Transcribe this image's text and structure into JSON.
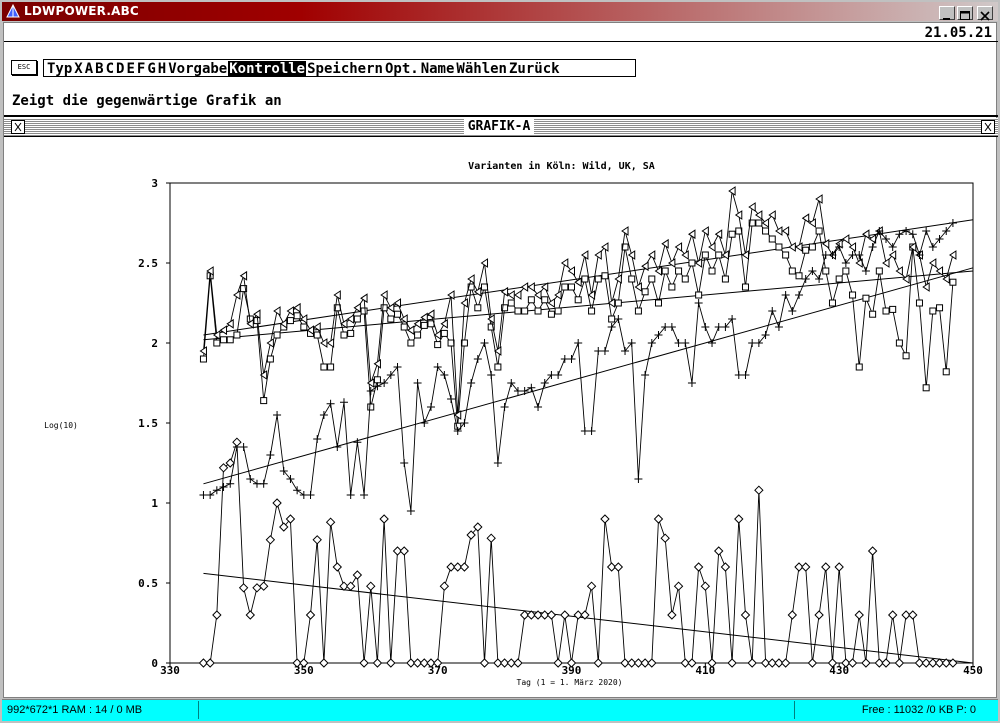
{
  "window": {
    "title": "LDWPOWER.ABC",
    "date": "21.05.21"
  },
  "toolbar": {
    "esc_label": "ESC",
    "menu_items": [
      "Typ",
      "X",
      "A",
      "B",
      "C",
      "D",
      "E",
      "F",
      "G",
      "H",
      "Vorgabe",
      "Kontrolle",
      "Speichern",
      "Opt.",
      "Name",
      "Wählen",
      "Zurück"
    ],
    "selected": "Kontrolle",
    "hint": "Zeigt die gegenwärtige Grafik an"
  },
  "graph_window": {
    "name": "GRAFIK-A"
  },
  "status": {
    "left": "992*672*1   RAM : 14 / 0 MB",
    "right": "Free : 11032 /0 KB  P: 0"
  },
  "chart_data": {
    "type": "line",
    "title": "Varianten in Köln: Wild, UK, SA",
    "xlabel": "Tag (1 = 1. März 2020)",
    "ylabel": "Log(10)",
    "xlim": [
      330,
      450
    ],
    "ylim": [
      0,
      3
    ],
    "xticks": [
      330,
      350,
      370,
      390,
      410,
      430,
      450
    ],
    "yticks": [
      0,
      0.5,
      1,
      1.5,
      2,
      2.5,
      3
    ],
    "ytick_labels": [
      "0",
      "0.5",
      "1",
      "1.5",
      "2",
      "2.5",
      "3"
    ],
    "grid": false,
    "x": [
      335,
      336,
      337,
      338,
      339,
      340,
      341,
      342,
      343,
      344,
      345,
      346,
      347,
      348,
      349,
      350,
      351,
      352,
      353,
      354,
      355,
      356,
      357,
      358,
      359,
      360,
      361,
      362,
      363,
      364,
      365,
      366,
      367,
      368,
      369,
      370,
      371,
      372,
      373,
      374,
      375,
      376,
      377,
      378,
      379,
      380,
      381,
      382,
      383,
      384,
      385,
      386,
      387,
      388,
      389,
      390,
      391,
      392,
      393,
      394,
      395,
      396,
      397,
      398,
      399,
      400,
      401,
      402,
      403,
      404,
      405,
      406,
      407,
      408,
      409,
      410,
      411,
      412,
      413,
      414,
      415,
      416,
      417,
      418,
      419,
      420,
      421,
      422,
      423,
      424,
      425,
      426,
      427,
      428,
      429,
      430,
      431,
      432,
      433,
      434,
      435,
      436,
      437,
      438,
      439,
      440,
      441,
      442,
      443,
      444,
      445,
      446,
      447
    ],
    "series": [
      {
        "marker": "square",
        "values": [
          1.9,
          2.42,
          2.0,
          2.02,
          2.02,
          2.05,
          2.34,
          2.15,
          2.14,
          1.64,
          1.9,
          2.05,
          2.1,
          2.14,
          2.17,
          2.1,
          2.06,
          2.05,
          1.85,
          1.85,
          2.22,
          2.05,
          2.06,
          2.15,
          2.2,
          1.6,
          1.77,
          2.22,
          2.15,
          2.18,
          2.1,
          2.0,
          2.05,
          2.11,
          2.12,
          1.99,
          2.06,
          2.0,
          1.48,
          2.0,
          2.35,
          2.22,
          2.35,
          2.1,
          1.85,
          2.22,
          2.25,
          2.2,
          2.2,
          2.27,
          2.2,
          2.27,
          2.18,
          2.2,
          2.35,
          2.35,
          2.27,
          2.4,
          2.2,
          2.4,
          2.42,
          2.15,
          2.25,
          2.6,
          2.4,
          2.2,
          2.32,
          2.4,
          2.25,
          2.45,
          2.35,
          2.45,
          2.4,
          2.5,
          2.3,
          2.55,
          2.45,
          2.55,
          2.4,
          2.68,
          2.7,
          2.35,
          2.75,
          2.75,
          2.7,
          2.65,
          2.6,
          2.55,
          2.45,
          2.42,
          2.58,
          2.6,
          2.7,
          2.45,
          2.25,
          2.4,
          2.45,
          2.3,
          1.85,
          2.28,
          2.18,
          2.45,
          2.2,
          2.21,
          2.0,
          1.92,
          2.6,
          2.25,
          1.72,
          2.2,
          2.22,
          1.82,
          2.38
        ]
      },
      {
        "marker": "triangle",
        "values": [
          1.95,
          2.45,
          2.05,
          2.08,
          2.12,
          2.3,
          2.42,
          2.12,
          2.18,
          1.8,
          2.0,
          2.2,
          2.12,
          2.2,
          2.22,
          2.15,
          2.08,
          2.1,
          2.0,
          2.0,
          2.3,
          2.12,
          2.15,
          2.22,
          2.28,
          1.75,
          1.87,
          2.3,
          2.22,
          2.25,
          2.15,
          2.08,
          2.12,
          2.16,
          2.18,
          2.05,
          2.12,
          2.3,
          1.55,
          2.25,
          2.4,
          2.32,
          2.5,
          2.15,
          1.95,
          2.32,
          2.3,
          2.3,
          2.35,
          2.35,
          2.3,
          2.35,
          2.25,
          2.3,
          2.5,
          2.45,
          2.38,
          2.55,
          2.3,
          2.55,
          2.6,
          2.25,
          2.4,
          2.7,
          2.55,
          2.35,
          2.48,
          2.55,
          2.45,
          2.62,
          2.5,
          2.6,
          2.55,
          2.68,
          2.5,
          2.7,
          2.6,
          2.68,
          2.55,
          2.95,
          2.8,
          2.55,
          2.85,
          2.8,
          2.75,
          2.8,
          2.7,
          2.7,
          2.6,
          2.6,
          2.78,
          2.75,
          2.9,
          2.62,
          2.55,
          2.62,
          2.65,
          2.6,
          2.5,
          2.68,
          2.65,
          2.7,
          2.5,
          2.55,
          2.45,
          2.4,
          2.6,
          2.55,
          2.35,
          2.5,
          2.45,
          2.4,
          2.55
        ]
      },
      {
        "marker": "plus",
        "values": [
          1.05,
          1.05,
          1.08,
          1.1,
          1.12,
          1.35,
          1.35,
          1.15,
          1.12,
          1.12,
          1.3,
          1.55,
          1.2,
          1.15,
          1.08,
          1.05,
          1.05,
          1.4,
          1.55,
          1.62,
          1.35,
          1.63,
          1.05,
          1.38,
          1.05,
          1.7,
          1.73,
          1.75,
          1.8,
          1.85,
          1.25,
          0.95,
          1.75,
          1.5,
          1.6,
          1.85,
          1.8,
          1.65,
          1.45,
          1.5,
          1.75,
          1.9,
          2.0,
          1.8,
          1.25,
          1.6,
          1.75,
          1.7,
          1.7,
          1.72,
          1.6,
          1.75,
          1.8,
          1.8,
          1.9,
          1.9,
          2.0,
          1.45,
          1.45,
          1.95,
          1.95,
          2.1,
          2.15,
          1.95,
          2.0,
          1.15,
          1.8,
          2.0,
          2.05,
          2.1,
          2.1,
          2.0,
          2.0,
          1.75,
          2.25,
          2.1,
          2.0,
          2.1,
          2.1,
          2.15,
          1.8,
          1.8,
          2.0,
          2.0,
          2.05,
          2.2,
          2.1,
          2.3,
          2.2,
          2.3,
          2.4,
          2.45,
          2.4,
          2.55,
          2.55,
          2.6,
          2.5,
          2.55,
          2.55,
          2.45,
          2.6,
          2.7,
          2.65,
          2.6,
          2.68,
          2.7,
          2.68,
          2.55,
          2.7,
          2.6,
          2.65,
          2.7,
          2.75
        ]
      },
      {
        "marker": "diamond",
        "values": [
          0,
          0,
          0.3,
          1.22,
          1.25,
          1.38,
          0.47,
          0.3,
          0.47,
          0.48,
          0.77,
          1.0,
          0.85,
          0.9,
          0.0,
          0.0,
          0.3,
          0.77,
          0.0,
          0.88,
          0.6,
          0.48,
          0.48,
          0.55,
          0.0,
          0.48,
          0.0,
          0.9,
          0.0,
          0.7,
          0.7,
          0.0,
          0.0,
          0.0,
          0.0,
          0.0,
          0.48,
          0.6,
          0.6,
          0.6,
          0.8,
          0.85,
          0.0,
          0.78,
          0.0,
          0.0,
          0.0,
          0.0,
          0.3,
          0.3,
          0.3,
          0.3,
          0.3,
          0.0,
          0.3,
          0.0,
          0.3,
          0.3,
          0.48,
          0.0,
          0.9,
          0.6,
          0.6,
          0.0,
          0.0,
          0.0,
          0.0,
          0.0,
          0.9,
          0.78,
          0.3,
          0.48,
          0.0,
          0.0,
          0.6,
          0.48,
          0.0,
          0.7,
          0.6,
          0.0,
          0.9,
          0.3,
          0.0,
          1.08,
          0.0,
          0.0,
          0.0,
          0.0,
          0.3,
          0.6,
          0.6,
          0.0,
          0.3,
          0.6,
          0.0,
          0.6,
          0.0,
          0.0,
          0.3,
          0.0,
          0.7,
          0.0,
          0.0,
          0.3,
          0.0,
          0.3,
          0.3,
          0.0,
          0.0,
          0.0,
          0.0,
          0.0,
          0.0
        ]
      }
    ],
    "trendlines": [
      {
        "of": "triangle",
        "points": [
          [
            335,
            2.05
          ],
          [
            450,
            2.77
          ]
        ]
      },
      {
        "of": "square",
        "points": [
          [
            335,
            2.02
          ],
          [
            450,
            2.45
          ]
        ]
      },
      {
        "of": "plus",
        "points": [
          [
            335,
            1.12
          ],
          [
            450,
            2.47
          ]
        ]
      },
      {
        "of": "diamond",
        "points": [
          [
            335,
            0.56
          ],
          [
            450,
            0.0
          ]
        ]
      }
    ]
  }
}
